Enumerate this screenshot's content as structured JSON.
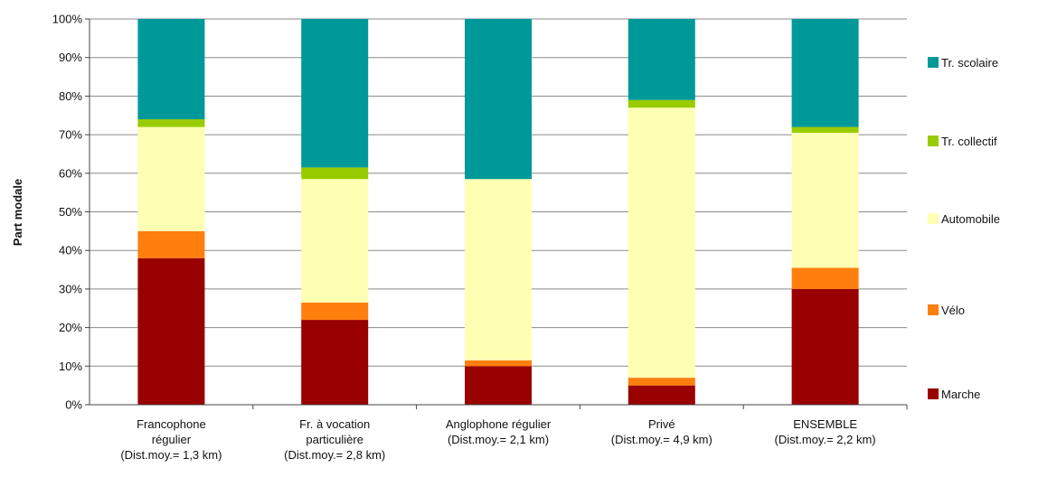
{
  "chart_data": {
    "type": "bar",
    "stacked": true,
    "percent": true,
    "ylabel": "Part modale",
    "xlabel": "",
    "ylim": [
      0,
      100
    ],
    "yticks": [
      "0%",
      "10%",
      "20%",
      "30%",
      "40%",
      "50%",
      "60%",
      "70%",
      "80%",
      "90%",
      "100%"
    ],
    "grid": true,
    "legend_position": "right",
    "categories": [
      [
        "Francophone",
        "régulier",
        "(Dist.moy.= 1,3 km)"
      ],
      [
        "Fr. à vocation",
        "particulière",
        "(Dist.moy.= 2,8 km)"
      ],
      [
        "Anglophone régulier",
        "(Dist.moy.= 2,1 km)"
      ],
      [
        "Privé",
        "(Dist.moy.= 4,9 km)"
      ],
      [
        "ENSEMBLE",
        "(Dist.moy.= 2,2 km)"
      ]
    ],
    "series": [
      {
        "name": "Marche",
        "color": "#990000",
        "values": [
          38,
          22,
          10,
          5,
          30
        ]
      },
      {
        "name": "Vélo",
        "color": "#FF7F0E",
        "values": [
          7,
          4.5,
          1.5,
          2,
          5.5
        ]
      },
      {
        "name": "Automobile",
        "color": "#FFFFB3",
        "values": [
          27,
          32,
          47,
          70,
          35
        ]
      },
      {
        "name": "Tr. collectif",
        "color": "#99CC00",
        "values": [
          2,
          3,
          0,
          2,
          1.5
        ]
      },
      {
        "name": "Tr. scolaire",
        "color": "#009999",
        "values": [
          26,
          38.5,
          41.5,
          21,
          28
        ]
      }
    ],
    "legend_order": [
      "Tr. scolaire",
      "Tr. collectif",
      "Automobile",
      "Vélo",
      "Marche"
    ]
  }
}
